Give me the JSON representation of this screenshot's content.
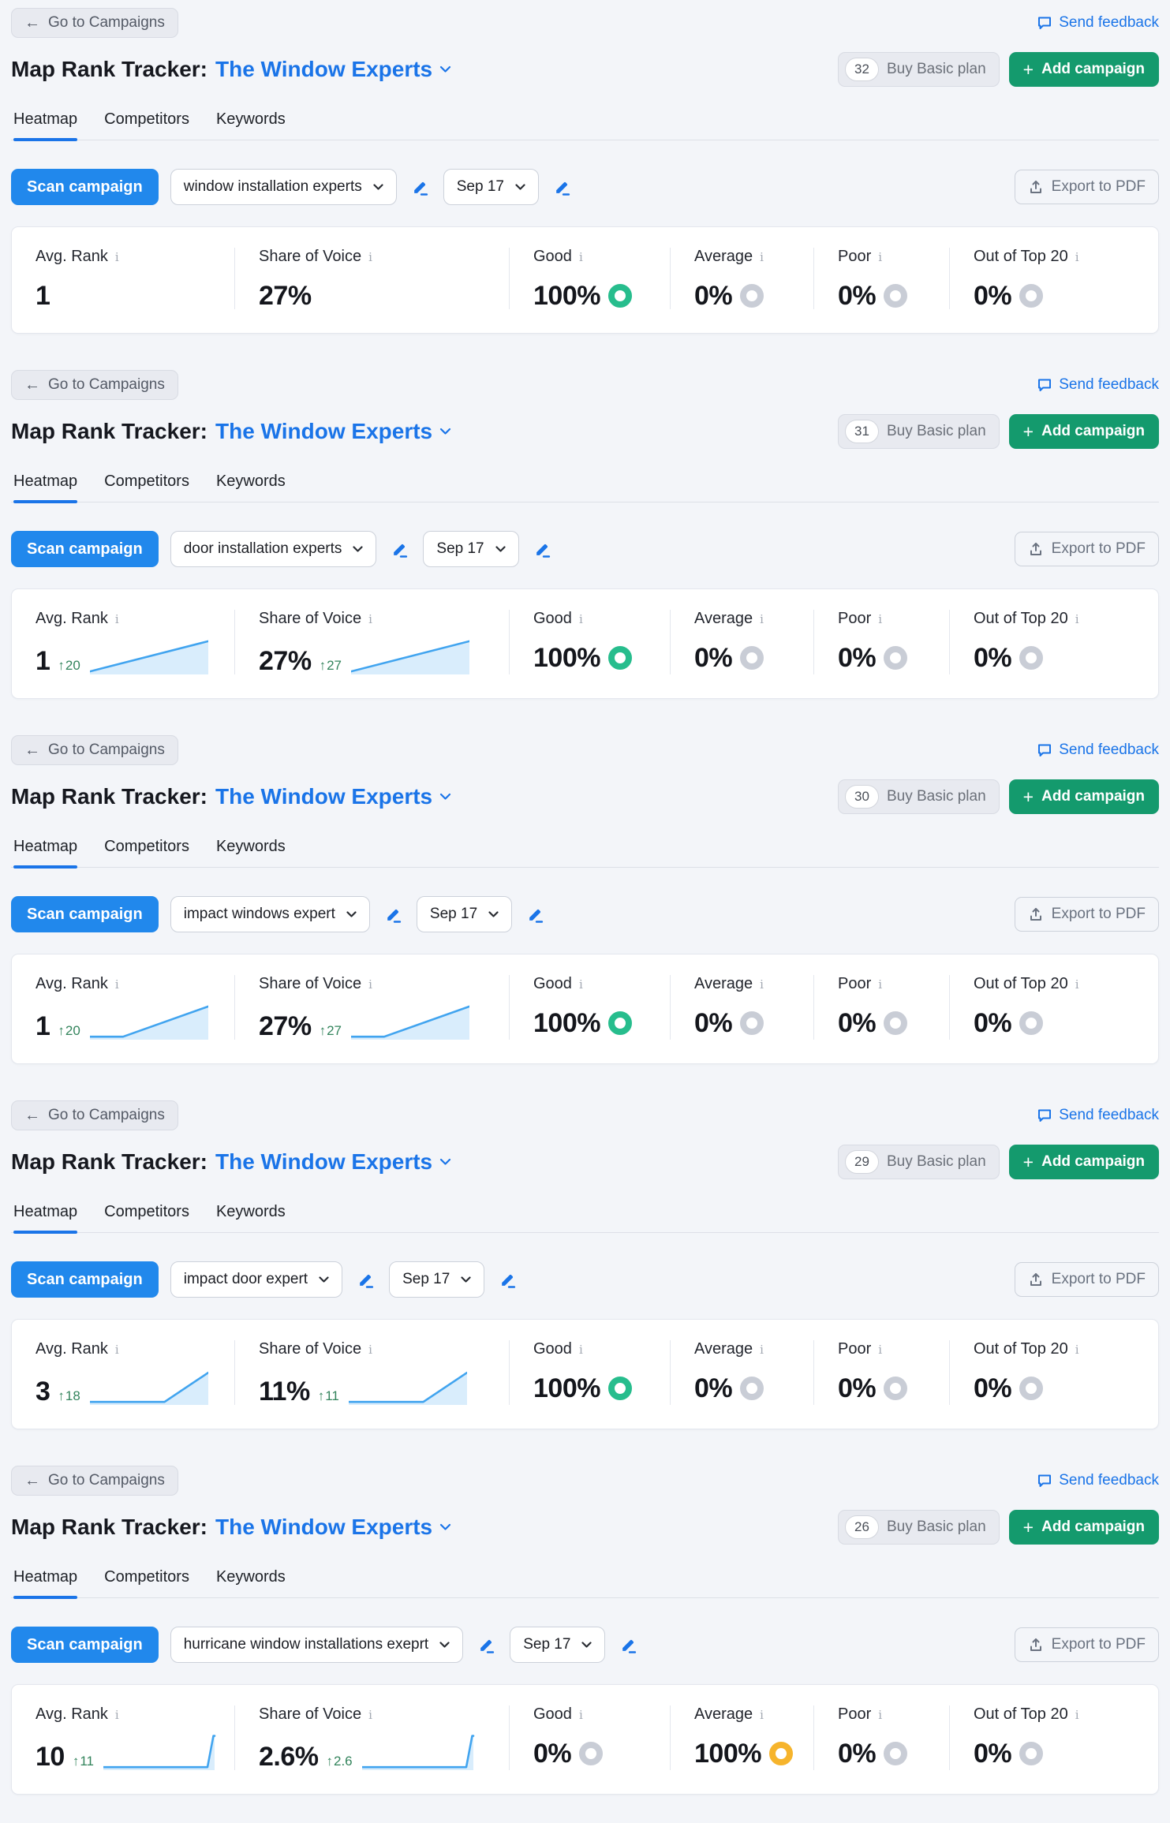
{
  "common": {
    "go_to_campaigns": "Go to Campaigns",
    "send_feedback": "Send feedback",
    "title_prefix": "Map Rank Tracker:",
    "title_account": "The Window Experts",
    "buy_basic_plan": "Buy Basic plan",
    "add_campaign": "Add campaign",
    "tabs": [
      {
        "label": "Heatmap",
        "active": true
      },
      {
        "label": "Competitors",
        "active": false
      },
      {
        "label": "Keywords",
        "active": false
      }
    ],
    "scan_campaign": "Scan campaign",
    "date_value": "Sep 17",
    "export_pdf": "Export to PDF",
    "stat_labels": [
      "Avg. Rank",
      "Share of Voice",
      "Good",
      "Average",
      "Poor",
      "Out of Top 20"
    ],
    "delta_arrow": "↑",
    "icons": [
      "arrow-left-icon",
      "feedback-bubble-icon",
      "chevron-down-icon",
      "plus-icon",
      "edit-pencil-icon",
      "export-upload-icon",
      "info-icon"
    ]
  },
  "colors": {
    "accent_blue": "#2188ec",
    "link_blue": "#1a74e8",
    "green_button": "#149a6d",
    "delta_green": "#33845c",
    "spark_stroke": "#41a4ef",
    "spark_fill": "#d9edfc",
    "rings": {
      "green": "#27bd8d",
      "orange": "#f6b42c",
      "gray": "#c9cdd6"
    }
  },
  "sections": [
    {
      "badge": "32",
      "keyword": "window installation experts",
      "stats": [
        {
          "value": "1",
          "delta": null,
          "spark": null,
          "ring": null
        },
        {
          "value": "27%",
          "delta": null,
          "spark": null,
          "ring": null
        },
        {
          "value": "100%",
          "delta": null,
          "spark": null,
          "ring": "green"
        },
        {
          "value": "0%",
          "delta": null,
          "spark": null,
          "ring": "gray"
        },
        {
          "value": "0%",
          "delta": null,
          "spark": null,
          "ring": "gray"
        },
        {
          "value": "0%",
          "delta": null,
          "spark": null,
          "ring": "gray"
        }
      ]
    },
    {
      "badge": "31",
      "keyword": "door installation experts",
      "stats": [
        {
          "value": "1",
          "delta": "20",
          "spark": [
            [
              0,
              33
            ],
            [
              100,
              3
            ]
          ],
          "ring": null
        },
        {
          "value": "27%",
          "delta": "27",
          "spark": [
            [
              0,
              33
            ],
            [
              100,
              3
            ]
          ],
          "ring": null
        },
        {
          "value": "100%",
          "delta": null,
          "spark": null,
          "ring": "green"
        },
        {
          "value": "0%",
          "delta": null,
          "spark": null,
          "ring": "gray"
        },
        {
          "value": "0%",
          "delta": null,
          "spark": null,
          "ring": "gray"
        },
        {
          "value": "0%",
          "delta": null,
          "spark": null,
          "ring": "gray"
        }
      ]
    },
    {
      "badge": "30",
      "keyword": "impact windows expert",
      "stats": [
        {
          "value": "1",
          "delta": "20",
          "spark": [
            [
              0,
              33
            ],
            [
              28,
              33
            ],
            [
              100,
              3
            ]
          ],
          "ring": null
        },
        {
          "value": "27%",
          "delta": "27",
          "spark": [
            [
              0,
              33
            ],
            [
              28,
              33
            ],
            [
              100,
              3
            ]
          ],
          "ring": null
        },
        {
          "value": "100%",
          "delta": null,
          "spark": null,
          "ring": "green"
        },
        {
          "value": "0%",
          "delta": null,
          "spark": null,
          "ring": "gray"
        },
        {
          "value": "0%",
          "delta": null,
          "spark": null,
          "ring": "gray"
        },
        {
          "value": "0%",
          "delta": null,
          "spark": null,
          "ring": "gray"
        }
      ]
    },
    {
      "badge": "29",
      "keyword": "impact door expert",
      "stats": [
        {
          "value": "3",
          "delta": "18",
          "spark": [
            [
              0,
              33
            ],
            [
              63,
              33
            ],
            [
              100,
              4
            ]
          ],
          "ring": null
        },
        {
          "value": "11%",
          "delta": "11",
          "spark": [
            [
              0,
              33
            ],
            [
              63,
              33
            ],
            [
              100,
              4
            ]
          ],
          "ring": null
        },
        {
          "value": "100%",
          "delta": null,
          "spark": null,
          "ring": "green"
        },
        {
          "value": "0%",
          "delta": null,
          "spark": null,
          "ring": "gray"
        },
        {
          "value": "0%",
          "delta": null,
          "spark": null,
          "ring": "gray"
        },
        {
          "value": "0%",
          "delta": null,
          "spark": null,
          "ring": "gray"
        }
      ]
    },
    {
      "badge": "26",
      "keyword": "hurricane window installations exeprt",
      "stats": [
        {
          "value": "10",
          "delta": "11",
          "spark": [
            [
              0,
              33
            ],
            [
              88,
              33
            ],
            [
              93,
              2
            ],
            [
              94,
              2
            ]
          ],
          "ring": null
        },
        {
          "value": "2.6%",
          "delta": "2.6",
          "spark": [
            [
              0,
              33
            ],
            [
              88,
              33
            ],
            [
              93,
              2
            ],
            [
              94,
              2
            ]
          ],
          "ring": null
        },
        {
          "value": "0%",
          "delta": null,
          "spark": null,
          "ring": "gray"
        },
        {
          "value": "100%",
          "delta": null,
          "spark": null,
          "ring": "orange"
        },
        {
          "value": "0%",
          "delta": null,
          "spark": null,
          "ring": "gray"
        },
        {
          "value": "0%",
          "delta": null,
          "spark": null,
          "ring": "gray"
        }
      ]
    }
  ]
}
